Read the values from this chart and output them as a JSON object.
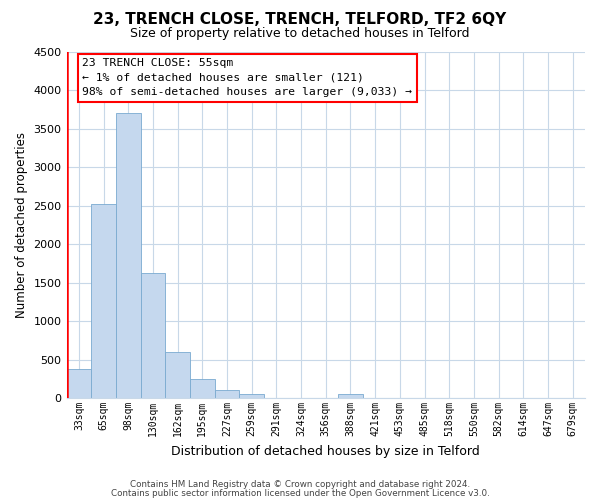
{
  "title": "23, TRENCH CLOSE, TRENCH, TELFORD, TF2 6QY",
  "subtitle": "Size of property relative to detached houses in Telford",
  "xlabel": "Distribution of detached houses by size in Telford",
  "ylabel": "Number of detached properties",
  "categories": [
    "33sqm",
    "65sqm",
    "98sqm",
    "130sqm",
    "162sqm",
    "195sqm",
    "227sqm",
    "259sqm",
    "291sqm",
    "324sqm",
    "356sqm",
    "388sqm",
    "421sqm",
    "453sqm",
    "485sqm",
    "518sqm",
    "550sqm",
    "582sqm",
    "614sqm",
    "647sqm",
    "679sqm"
  ],
  "values": [
    380,
    2520,
    3700,
    1620,
    600,
    245,
    100,
    55,
    0,
    0,
    0,
    55,
    0,
    0,
    0,
    0,
    0,
    0,
    0,
    0,
    0
  ],
  "bar_color": "#c5d8ee",
  "bar_edge_color": "#7aaad0",
  "ylim": [
    0,
    4500
  ],
  "yticks": [
    0,
    500,
    1000,
    1500,
    2000,
    2500,
    3000,
    3500,
    4000,
    4500
  ],
  "annotation_title": "23 TRENCH CLOSE: 55sqm",
  "annotation_line1": "← 1% of detached houses are smaller (121)",
  "annotation_line2": "98% of semi-detached houses are larger (9,033) →",
  "footer1": "Contains HM Land Registry data © Crown copyright and database right 2024.",
  "footer2": "Contains public sector information licensed under the Open Government Licence v3.0.",
  "background_color": "#ffffff",
  "grid_color": "#c8d8e8"
}
